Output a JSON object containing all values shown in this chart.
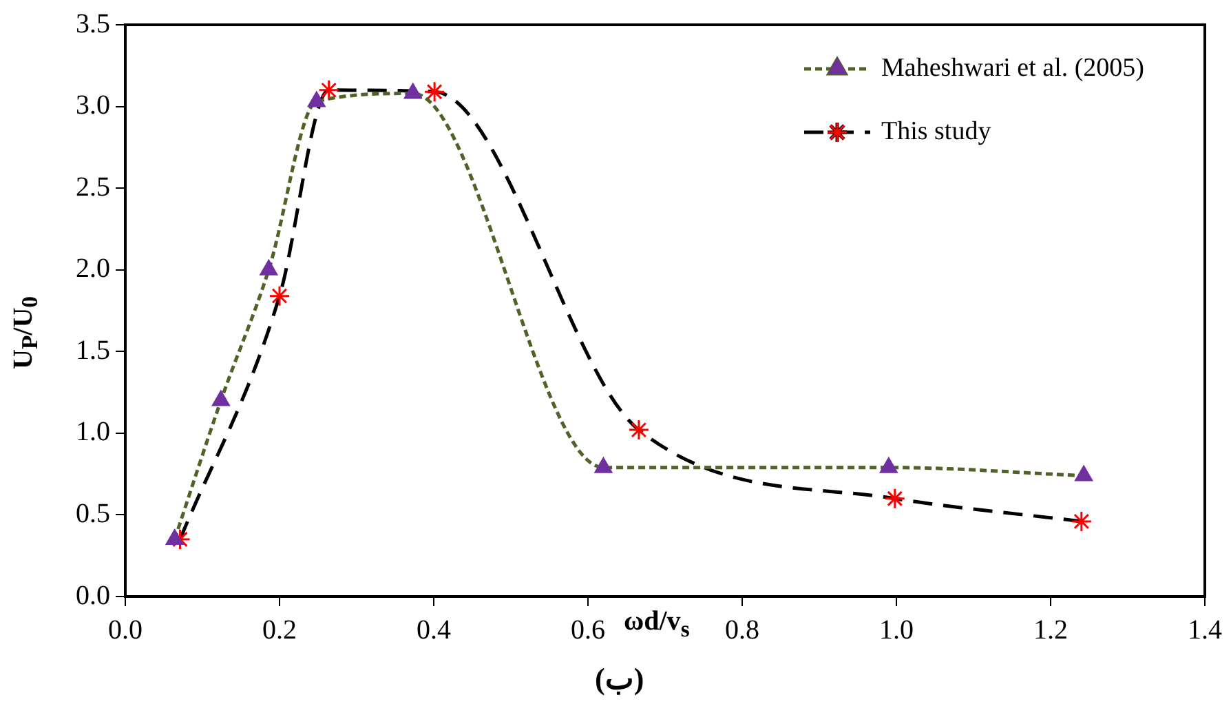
{
  "chart_data": {
    "type": "line",
    "xlabel": "ωd/v$_{s}$",
    "ylabel": "U$_{P}$/U$_{0}$",
    "annotations": [
      "(ب)"
    ],
    "xlim": [
      0,
      1.4
    ],
    "xticks": [
      {
        "value": 0,
        "label": "0.0"
      },
      {
        "value": 0.2,
        "label": "0.2"
      },
      {
        "value": 0.4,
        "label": "0.4"
      },
      {
        "value": 0.6,
        "label": "0.6"
      },
      {
        "value": 0.8,
        "label": "0.8"
      },
      {
        "value": 1.0,
        "label": "1.0"
      },
      {
        "value": 1.2,
        "label": "1.2"
      },
      {
        "value": 1.4,
        "label": "1.4"
      }
    ],
    "ylim": [
      0,
      3.5
    ],
    "yticks": [
      {
        "value": 0,
        "label": "0.0"
      },
      {
        "value": 0.5,
        "label": "0.5"
      },
      {
        "value": 1.0,
        "label": "1.0"
      },
      {
        "value": 1.5,
        "label": "1.5"
      },
      {
        "value": 2.0,
        "label": "2.0"
      },
      {
        "value": 2.5,
        "label": "2.5"
      },
      {
        "value": 3.0,
        "label": "3.0"
      },
      {
        "value": 3.5,
        "label": "3.5"
      }
    ],
    "grid": false,
    "legend": "top right",
    "series": [
      {
        "name": "Maheshwari et al. (2005)",
        "color": "#4f6228",
        "colors": [
          "#7030a0",
          "#7030a0",
          "#7030a0",
          "#7030a0",
          "#7030a0",
          "#7030a0",
          "#7030a0",
          "#7030a0"
        ],
        "marker": "triangle",
        "line_style": "dotted",
        "x": [
          0.064,
          0.124,
          0.186,
          0.248,
          0.373,
          0.62,
          0.99,
          1.243
        ],
        "values": [
          0.35,
          1.2,
          2.0,
          3.03,
          3.08,
          0.79,
          0.79,
          0.74
        ]
      },
      {
        "name": "This study",
        "color": "#000000",
        "colors": [
          "#ff0000",
          "#ff0000",
          "#ff0000",
          "#ff0000",
          "#ff0000",
          "#ff0000",
          "#ff0000"
        ],
        "marker": "cross",
        "line_style": "dashed",
        "x": [
          0.071,
          0.2,
          0.264,
          0.401,
          0.666,
          0.998,
          1.24
        ],
        "values": [
          0.35,
          1.84,
          3.1,
          3.09,
          1.02,
          0.6,
          0.46
        ]
      }
    ]
  }
}
